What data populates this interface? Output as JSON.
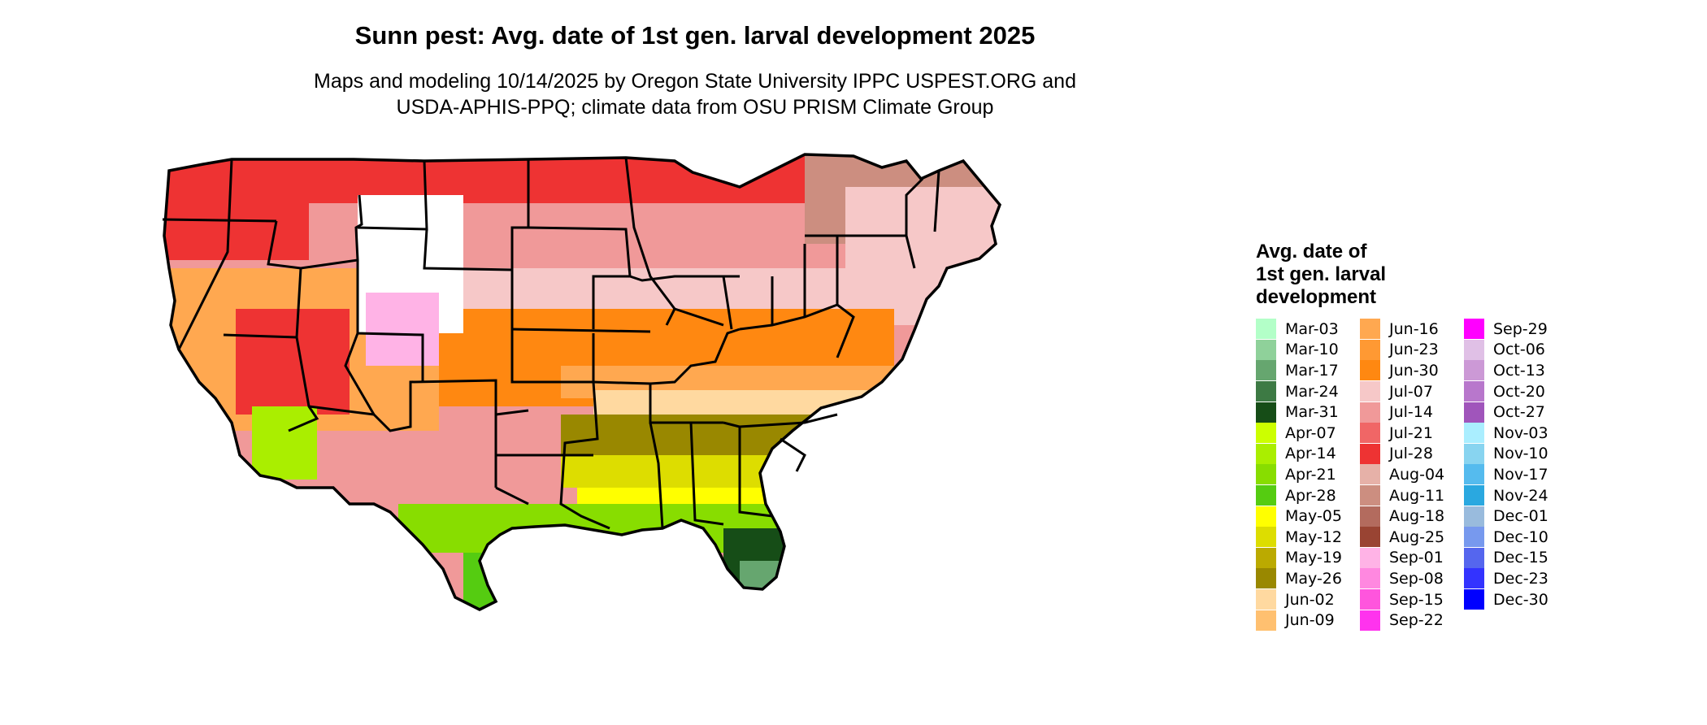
{
  "title": "Sunn pest: Avg. date of 1st gen. larval development 2025",
  "subtitle_lines": [
    "Maps and modeling 10/14/2025 by Oregon State University IPPC USPEST.ORG and",
    "USDA-APHIS-PPQ; climate data from OSU PRISM Climate Group"
  ],
  "legend": {
    "title_lines": [
      "Avg. date of",
      "1st gen. larval",
      "development"
    ],
    "columns": [
      [
        {
          "label": "Mar-03",
          "color": "#b3ffc8"
        },
        {
          "label": "Mar-10",
          "color": "#8fd19a"
        },
        {
          "label": "Mar-17",
          "color": "#66a66f"
        },
        {
          "label": "Mar-24",
          "color": "#3d7a44"
        },
        {
          "label": "Mar-31",
          "color": "#164d17"
        },
        {
          "label": "Apr-07",
          "color": "#ccff00"
        },
        {
          "label": "Apr-14",
          "color": "#aaee00"
        },
        {
          "label": "Apr-21",
          "color": "#88dd00"
        },
        {
          "label": "Apr-28",
          "color": "#55cc11"
        },
        {
          "label": "May-05",
          "color": "#ffff00"
        },
        {
          "label": "May-12",
          "color": "#dddd00"
        },
        {
          "label": "May-19",
          "color": "#bbaa00"
        },
        {
          "label": "May-26",
          "color": "#998800"
        },
        {
          "label": "Jun-02",
          "color": "#ffd9a0"
        },
        {
          "label": "Jun-09",
          "color": "#ffc070"
        }
      ],
      [
        {
          "label": "Jun-16",
          "color": "#ffa850"
        },
        {
          "label": "Jun-23",
          "color": "#ff9933"
        },
        {
          "label": "Jun-30",
          "color": "#ff8811"
        },
        {
          "label": "Jul-07",
          "color": "#f6c8c8"
        },
        {
          "label": "Jul-14",
          "color": "#f09999"
        },
        {
          "label": "Jul-21",
          "color": "#f06666"
        },
        {
          "label": "Jul-28",
          "color": "#ee3333"
        },
        {
          "label": "Aug-04",
          "color": "#e6b1a8"
        },
        {
          "label": "Aug-11",
          "color": "#cc8e80"
        },
        {
          "label": "Aug-18",
          "color": "#b36b5e"
        },
        {
          "label": "Aug-25",
          "color": "#994433"
        },
        {
          "label": "Sep-01",
          "color": "#ffb3e6"
        },
        {
          "label": "Sep-08",
          "color": "#ff88e0"
        },
        {
          "label": "Sep-15",
          "color": "#ff55dd"
        },
        {
          "label": "Sep-22",
          "color": "#ff33ee"
        }
      ],
      [
        {
          "label": "Sep-29",
          "color": "#ff00ff"
        },
        {
          "label": "Oct-06",
          "color": "#e0c0e6"
        },
        {
          "label": "Oct-13",
          "color": "#cc99d6"
        },
        {
          "label": "Oct-20",
          "color": "#b877cc"
        },
        {
          "label": "Oct-27",
          "color": "#a055bb"
        },
        {
          "label": "Nov-03",
          "color": "#aaeeff"
        },
        {
          "label": "Nov-10",
          "color": "#88d4f0"
        },
        {
          "label": "Nov-17",
          "color": "#55bbee"
        },
        {
          "label": "Nov-24",
          "color": "#2aa8e0"
        },
        {
          "label": "Dec-01",
          "color": "#99bbdd"
        },
        {
          "label": "Dec-10",
          "color": "#7799ee"
        },
        {
          "label": "Dec-15",
          "color": "#5566ee"
        },
        {
          "label": "Dec-23",
          "color": "#3333ff"
        },
        {
          "label": "Dec-30",
          "color": "#0000ff"
        }
      ]
    ]
  }
}
